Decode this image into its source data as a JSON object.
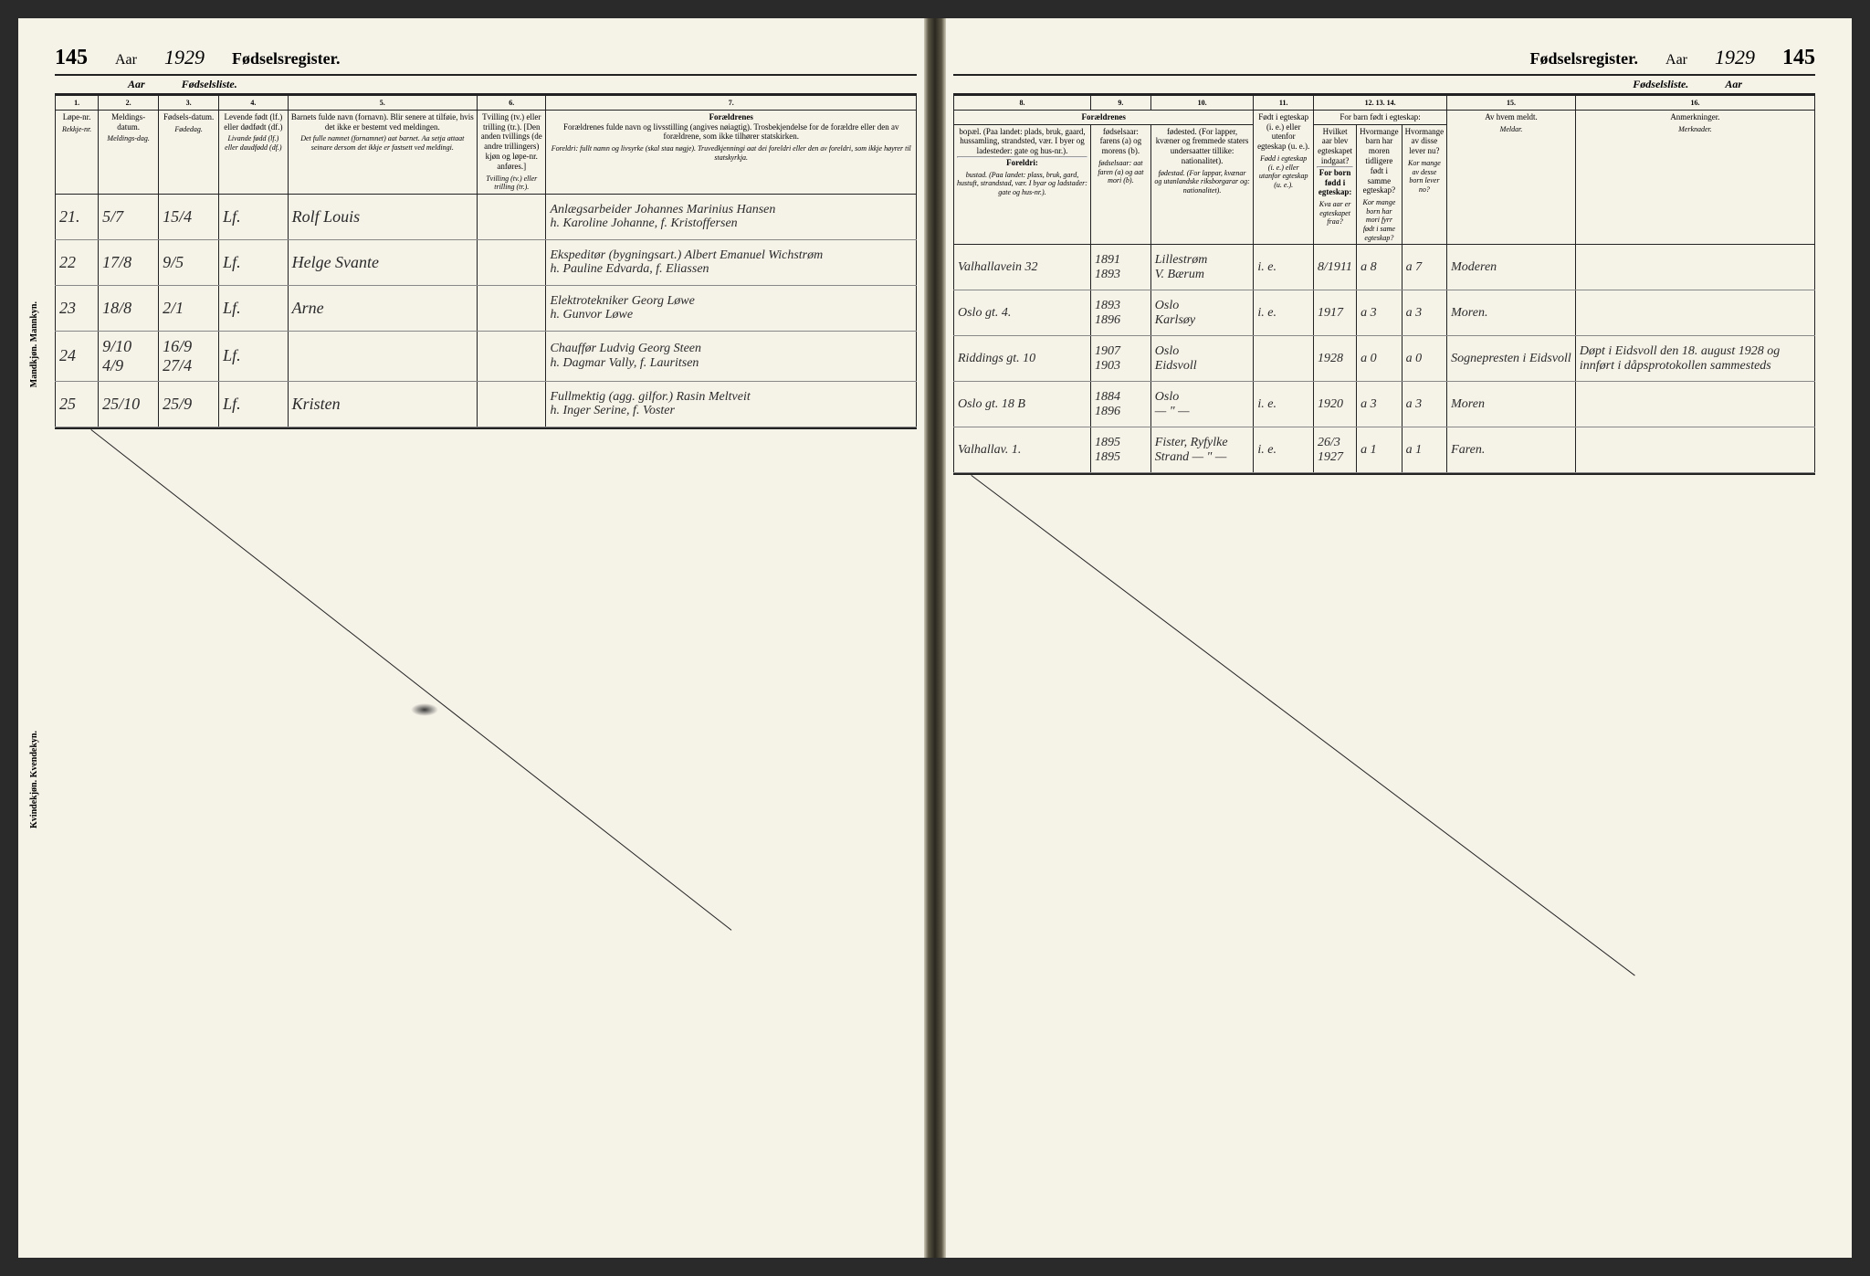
{
  "page_number": "145",
  "year_label": "Aar",
  "year_value": "1929",
  "register_title": "Fødselsregister.",
  "sub_title": "Fødselsliste.",
  "side_labels": {
    "mandkjon": "Mandkjøn.\nMannkyn.",
    "kvindekjon": "Kvindekjøn.\nKvendekyn."
  },
  "left_columns": {
    "c1": {
      "num": "1.",
      "heading": "Løpe-nr.",
      "sub": "Rekkje-nr."
    },
    "c2": {
      "num": "2.",
      "heading": "Meldings-datum.",
      "sub": "Meldings-dag."
    },
    "c3": {
      "num": "3.",
      "heading": "Fødsels-datum.",
      "sub": "Fødedag."
    },
    "c4": {
      "num": "4.",
      "heading": "Levende født (lf.) eller dødfødt (df.)",
      "sub": "Livande fødd (lf.) eller daudfødd (df.)"
    },
    "c5": {
      "num": "5.",
      "heading": "Barnets fulde navn (fornavn). Blir senere at tilføie, hvis det ikke er bestemt ved meldingen.",
      "sub": "Det fulle namnet (fornamnet) aat barnet. Aa setja attaat seinare dersom det ikkje er fastsett ved meldingi."
    },
    "c6": {
      "num": "6.",
      "heading": "Tvilling (tv.) eller trilling (tr.). [Den anden tvillings (de andre trillingers) kjøn og løpe-nr. anføres.]",
      "sub": "Tvilling (tv.) eller trilling (tr.)."
    },
    "c7": {
      "num": "7.",
      "heading": "Forældrenes fulde navn og livsstilling (angives nøiagtig). Trosbekjendelse for de forældre eller den av forældrene, som ikke tilhører statskirken.",
      "sub": "Foreldri: fullt namn og livsyrke (skal staa nøgje). Truvedkjenningi aat dei foreldri eller den av foreldri, som ikkje høyrer til statskyrkja."
    }
  },
  "right_columns": {
    "c8": {
      "num": "8.",
      "group": "Forældrenes",
      "heading": "bopæl. (Paa landet: plads, bruk, gaard, hussamling, strandsted, vær. I byer og ladesteder: gate og hus-nr.).",
      "sub": "bustad. (Paa landet: plass, bruk, gard, hustuft, strandstad, vær. I byar og ladstader: gate og hus-nr.)."
    },
    "c9": {
      "num": "9.",
      "heading": "",
      "sub": ""
    },
    "c10": {
      "num": "10.",
      "heading": "fødselsaar: farens (a) og morens (b).",
      "heading2": "fødested. (For lapper, kvæner og fremmede staters undersaatter tillike: nationalitet).",
      "sub": "fødselsaar: aat faren (a) og aat mori (b).",
      "sub2": "fødestad. (For lappar, kvænar og utanlandske riksborgarar og: nationalitet)."
    },
    "c11": {
      "num": "11.",
      "heading": "Født i egteskap (i. e.) eller utenfor egteskap (u. e.).",
      "sub": "Fødd i egteskap (i. e.) eller utanfor egteskap (u. e.)."
    },
    "c12_14": {
      "nums": "12. 13. 14.",
      "group": "For barn født i egteskap:",
      "c12": "Hvilket aar blev egteskapet indgaat?",
      "c13": "Hvormange barn har moren tidligere født i samme egteskap?",
      "c14": "Hvormange av disse lever nu?",
      "sub_group": "For born fødd i egteskap:",
      "c12s": "Kva aar er egteskapet fraa?",
      "c13s": "Kor mange born har mori fyrr født i same egteskap?",
      "c14s": "Kor mange av desse born lever no?"
    },
    "c15": {
      "num": "15.",
      "heading": "Av hvem meldt.",
      "sub": "Meldar."
    },
    "c16": {
      "num": "16.",
      "heading": "Anmerkninger.",
      "sub": "Merknader."
    }
  },
  "foreldri_label": "Foreldri:",
  "rows": [
    {
      "nr": "21.",
      "meld": "5/7",
      "fod": "15/4",
      "lf": "Lf.",
      "navn": "Rolf Louis",
      "foreldre_a": "Anlægsarbeider Johannes Marinius Hansen",
      "foreldre_b": "h. Karoline Johanne, f. Kristoffersen",
      "bopel": "Valhallavein 32",
      "aar_a": "1891",
      "aar_b": "1893",
      "sted_a": "Lillestrøm",
      "sted_b": "V. Bærum",
      "ie": "i. e.",
      "egt": "8/1911",
      "b1": "a 8",
      "b2": "a 7",
      "meldt": "Moderen",
      "anm": ""
    },
    {
      "nr": "22",
      "meld": "17/8",
      "fod": "9/5",
      "lf": "Lf.",
      "navn": "Helge Svante",
      "foreldre_a": "Ekspeditør (bygningsart.) Albert Emanuel Wichstrøm",
      "foreldre_b": "h. Pauline Edvarda, f. Eliassen",
      "bopel": "Oslo gt. 4.",
      "aar_a": "1893",
      "aar_b": "1896",
      "sted_a": "Oslo",
      "sted_b": "Karlsøy",
      "ie": "i. e.",
      "egt": "1917",
      "b1": "a 3",
      "b2": "a 3",
      "meldt": "Moren.",
      "anm": ""
    },
    {
      "nr": "23",
      "meld": "18/8",
      "fod": "2/1",
      "lf": "Lf.",
      "navn": "Arne",
      "foreldre_a": "Elektrotekniker Georg Løwe",
      "foreldre_b": "h. Gunvor Løwe",
      "bopel": "Riddings gt. 10",
      "aar_a": "1907",
      "aar_b": "1903",
      "sted_a": "Oslo",
      "sted_b": "Eidsvoll",
      "ie": "",
      "egt": "1928",
      "b1": "a 0",
      "b2": "a 0",
      "meldt": "Sognepresten i Eidsvoll",
      "anm": "Døpt i Eidsvoll den 18. august 1928 og innført i dåpsprotokollen sammesteds"
    },
    {
      "nr": "24",
      "meld": "9/10 4/9",
      "fod": "16/9 27/4",
      "lf": "Lf.",
      "navn": "",
      "foreldre_a": "Chauffør Ludvig Georg Steen",
      "foreldre_b": "h. Dagmar Vally, f. Lauritsen",
      "bopel": "Oslo gt. 18 B",
      "aar_a": "1884",
      "aar_b": "1896",
      "sted_a": "Oslo",
      "sted_b": "— \" —",
      "ie": "i. e.",
      "egt": "1920",
      "b1": "a 3",
      "b2": "a 3",
      "meldt": "Moren",
      "anm": ""
    },
    {
      "nr": "25",
      "meld": "25/10",
      "fod": "25/9",
      "lf": "Lf.",
      "navn": "Kristen",
      "foreldre_a": "Fullmektig (agg. gilfor.) Rasin Meltveit",
      "foreldre_b": "h. Inger Serine, f. Voster",
      "bopel": "Valhallav. 1.",
      "aar_a": "1895",
      "aar_b": "1895",
      "sted_a": "Fister, Ryfylke",
      "sted_b": "Strand — \" —",
      "ie": "i. e.",
      "egt": "26/3 1927",
      "b1": "a 1",
      "b2": "a 1",
      "meldt": "Faren.",
      "anm": ""
    }
  ]
}
